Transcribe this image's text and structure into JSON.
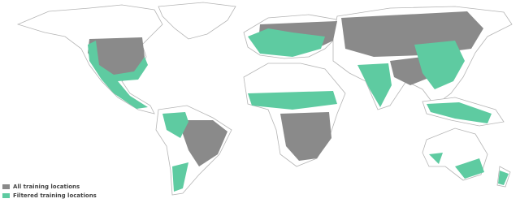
{
  "legend": {
    "items": [
      {
        "label": "All training locations",
        "color": "#8a8a8a"
      },
      {
        "label": "Filtered training locations",
        "color": "#5ecba1"
      }
    ]
  }
}
